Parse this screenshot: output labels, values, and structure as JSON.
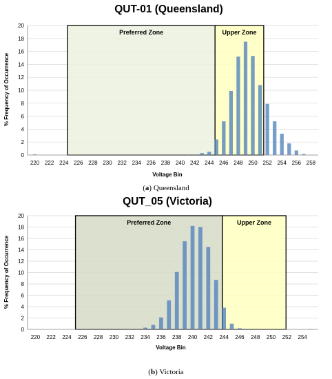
{
  "chart_data": [
    {
      "type": "bar",
      "title": "QUT-01 (Queensland)",
      "xlabel": "Voltage Bin",
      "ylabel": "% Frequency of Occurrence",
      "caption_letter": "a",
      "caption_text": "Queensland",
      "x_ticks": [
        220,
        222,
        224,
        226,
        228,
        230,
        232,
        234,
        236,
        238,
        240,
        242,
        244,
        246,
        248,
        250,
        252,
        254,
        256,
        258
      ],
      "xlim": [
        219,
        259
      ],
      "ylim": [
        0,
        20
      ],
      "y_ticks": [
        0,
        2,
        4,
        6,
        8,
        10,
        12,
        14,
        16,
        18,
        20
      ],
      "grid": true,
      "x": [
        220,
        221,
        222,
        223,
        224,
        225,
        226,
        227,
        228,
        229,
        230,
        231,
        232,
        233,
        234,
        235,
        236,
        237,
        238,
        239,
        240,
        241,
        242,
        243,
        244,
        245,
        246,
        247,
        248,
        249,
        250,
        251,
        252,
        253,
        254,
        255,
        256,
        257,
        258
      ],
      "values": [
        0.1,
        0,
        0,
        0,
        0,
        0,
        0,
        0,
        0,
        0,
        0,
        0,
        0,
        0,
        0,
        0,
        0,
        0,
        0,
        0,
        0,
        0.02,
        0.05,
        0.3,
        0.5,
        2.4,
        5.2,
        9.9,
        15.2,
        17.5,
        15.3,
        10.8,
        7.9,
        5.2,
        3.3,
        1.8,
        0.7,
        0.15,
        0
      ],
      "bar_color": "#4f81bd",
      "zones": [
        {
          "label": "Preferred Zone",
          "from": 224.5,
          "to": 244.8,
          "fill": "#ebf1de",
          "stroke": "#000000"
        },
        {
          "label": "Upper Zone",
          "from": 244.8,
          "to": 251.5,
          "fill": "#ffffc0",
          "stroke": "#000000"
        }
      ]
    },
    {
      "type": "bar",
      "title": "QUT_05 (Victoria)",
      "xlabel": "Voltage Bin",
      "ylabel": "% Frequency of Occurrence",
      "caption_letter": "b",
      "caption_text": "Victoria",
      "x_ticks": [
        220,
        222,
        224,
        226,
        228,
        230,
        232,
        234,
        236,
        238,
        240,
        242,
        244,
        246,
        248,
        250,
        252,
        254
      ],
      "xlim": [
        219,
        256
      ],
      "ylim": [
        0,
        20
      ],
      "y_ticks": [
        0,
        2,
        4,
        6,
        8,
        10,
        12,
        14,
        16,
        18,
        20
      ],
      "grid": true,
      "x": [
        220,
        221,
        222,
        223,
        224,
        225,
        226,
        227,
        228,
        229,
        230,
        231,
        232,
        233,
        234,
        235,
        236,
        237,
        238,
        239,
        240,
        241,
        242,
        243,
        244,
        245,
        246,
        247,
        248,
        249,
        250,
        251,
        252,
        253,
        254,
        255
      ],
      "values": [
        0,
        0,
        0,
        0,
        0,
        0,
        0,
        0,
        0,
        0,
        0,
        0,
        0.02,
        0.05,
        0.3,
        0.8,
        2.1,
        5.1,
        10.1,
        15.5,
        18.2,
        18.0,
        14.5,
        8.7,
        3.8,
        1.0,
        0.2,
        0.05,
        0,
        0,
        0,
        0,
        0,
        0,
        0,
        0.05
      ],
      "bar_color": "#4f81bd",
      "zones": [
        {
          "label": "Preferred Zone",
          "from": 225.1,
          "to": 243.8,
          "fill": "#d6dbc6",
          "stroke": "#000000"
        },
        {
          "label": "Upper Zone",
          "from": 243.8,
          "to": 251.9,
          "fill": "#ffffc0",
          "stroke": "#000000"
        }
      ]
    }
  ]
}
